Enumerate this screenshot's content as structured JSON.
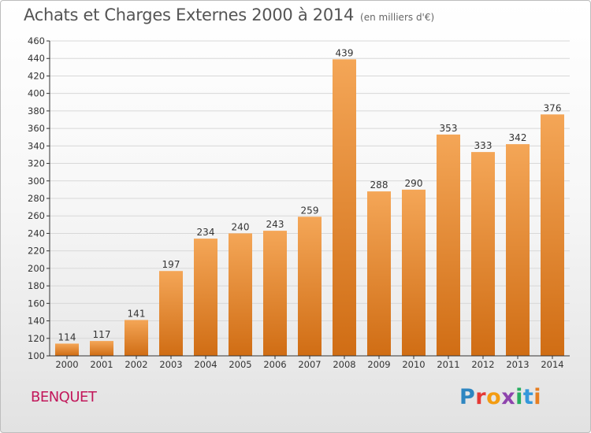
{
  "title": "Achats et Charges Externes 2000 à 2014",
  "subtitle": "(en milliers d'€)",
  "commune": "BENQUET",
  "logo": {
    "text": "Proxiti",
    "letter_colors": [
      "#2e86c1",
      "#e53935",
      "#f39c12",
      "#8e44ad",
      "#27ae60",
      "#3498db",
      "#e67e22"
    ]
  },
  "colors": {
    "bar_top": "#f4a657",
    "bar_bottom": "#d06d14",
    "grid": "#d8d8d8",
    "axis": "#333333",
    "label": "#333333"
  },
  "chart_data": {
    "type": "bar",
    "categories": [
      "2000",
      "2001",
      "2002",
      "2003",
      "2004",
      "2005",
      "2006",
      "2007",
      "2008",
      "2009",
      "2010",
      "2011",
      "2012",
      "2013",
      "2014"
    ],
    "values": [
      114,
      117,
      141,
      197,
      234,
      240,
      243,
      259,
      439,
      288,
      290,
      353,
      333,
      342,
      376
    ],
    "ylim": [
      100,
      460
    ],
    "yticks": [
      100,
      120,
      140,
      160,
      180,
      200,
      220,
      240,
      260,
      280,
      300,
      320,
      340,
      360,
      380,
      400,
      420,
      440,
      460
    ],
    "grid": true,
    "xlabel": "",
    "ylabel": ""
  }
}
